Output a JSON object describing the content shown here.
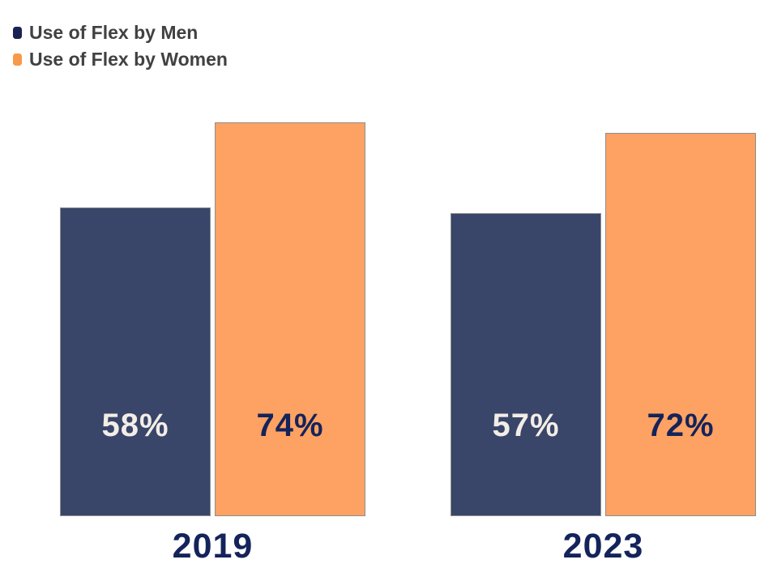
{
  "legend": {
    "items": [
      {
        "label": "Use of Flex by Men",
        "color": "#1a2153"
      },
      {
        "label": "Use of Flex by Women",
        "color": "#f8994a"
      }
    ]
  },
  "chart_data": {
    "type": "bar",
    "categories": [
      "2019",
      "2023"
    ],
    "series": [
      {
        "name": "Use of Flex by Men",
        "color": "#394569",
        "label_color": "#f2ede6",
        "values": [
          58,
          57
        ],
        "labels": [
          "58%",
          "57%"
        ]
      },
      {
        "name": "Use of Flex by Women",
        "color": "#fda262",
        "label_color": "#14235a",
        "values": [
          74,
          72
        ],
        "labels": [
          "74%",
          "72%"
        ]
      }
    ],
    "ylabel": "",
    "xlabel": "",
    "ylim": [
      0,
      100
    ],
    "unit": "%",
    "grid": false,
    "axes_hidden": true,
    "legend_position": "top-left",
    "value_labels_inside_bars": true
  }
}
